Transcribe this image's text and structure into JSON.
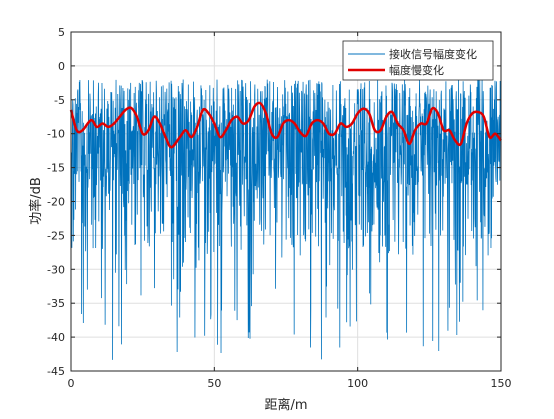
{
  "chart_data": {
    "type": "line",
    "xlabel": "距离/m",
    "ylabel": "功率/dB",
    "xlim": [
      0,
      150
    ],
    "ylim": [
      -45,
      5
    ],
    "xticks": [
      0,
      50,
      100,
      150
    ],
    "yticks": [
      5,
      0,
      -5,
      -10,
      -15,
      -20,
      -25,
      -30,
      -35,
      -40,
      -45
    ],
    "grid": true,
    "legend_position": "top-right",
    "series": [
      {
        "name": "接收信号幅度变化",
        "color": "#0072BD",
        "style": "noisy-fast-fading",
        "mean": -10.5,
        "range": [
          -43.5,
          -2
        ],
        "points": 1500
      },
      {
        "name": "幅度慢变化",
        "color": "#E00000",
        "x": [
          0,
          2,
          4,
          7,
          9,
          11,
          13,
          15,
          17,
          19,
          21,
          23,
          25,
          27,
          29,
          31,
          33,
          35,
          38,
          40,
          42,
          44,
          46,
          48,
          50,
          52,
          54,
          56,
          58,
          60,
          62,
          64,
          66,
          68,
          70,
          72,
          74,
          76,
          78,
          80,
          82,
          84,
          86,
          88,
          90,
          92,
          94,
          96,
          98,
          100,
          102,
          104,
          106,
          108,
          110,
          112,
          114,
          116,
          118,
          120,
          122,
          124,
          126,
          128,
          130,
          132,
          134,
          136,
          138,
          140,
          142,
          144,
          146,
          148,
          150
        ],
        "y": [
          -6.5,
          -9.5,
          -9.5,
          -8,
          -9,
          -8.5,
          -9,
          -8.5,
          -7.5,
          -6.5,
          -6.2,
          -7.5,
          -10,
          -9.5,
          -7.5,
          -8.5,
          -10.5,
          -12,
          -10.5,
          -9.5,
          -10.5,
          -9,
          -6.5,
          -7,
          -8.5,
          -10.5,
          -9.5,
          -8,
          -7.5,
          -8.5,
          -8,
          -6,
          -5.5,
          -7,
          -10,
          -10.5,
          -8.5,
          -8,
          -8.5,
          -9.8,
          -10.3,
          -8.5,
          -8,
          -8.5,
          -10,
          -10,
          -8.5,
          -9,
          -8.5,
          -7,
          -6.3,
          -7,
          -9.5,
          -9.5,
          -7.5,
          -6.8,
          -8.5,
          -9.5,
          -11.5,
          -9.5,
          -8.5,
          -8.5,
          -6.3,
          -7,
          -9.5,
          -9.5,
          -11,
          -11.5,
          -8.5,
          -7,
          -6.8,
          -7.5,
          -10.5,
          -10,
          -11
        ]
      }
    ]
  }
}
